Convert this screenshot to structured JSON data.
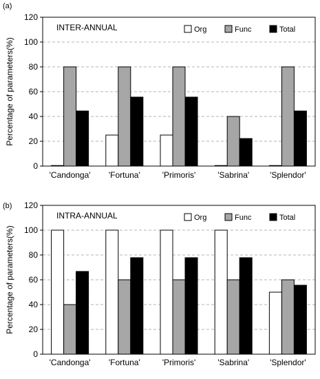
{
  "chart_data": [
    {
      "panel_label": "(a)",
      "type": "bar",
      "title": "INTER-ANNUAL",
      "ylabel": "Percentage of parameters(%)",
      "ylim": [
        0,
        120
      ],
      "yticks": [
        "0",
        "20",
        "40",
        "60",
        "80",
        "100",
        "120"
      ],
      "grid": "horizontal dashed",
      "legend_position": "top-right",
      "categories": [
        "'Candonga'",
        "'Fortuna'",
        "'Primoris'",
        "'Sabrina'",
        "'Splendor'"
      ],
      "series": [
        {
          "name": "Org",
          "color": "#ffffff",
          "values": [
            0,
            25,
            25,
            0,
            0
          ]
        },
        {
          "name": "Func",
          "color": "#a6a6a6",
          "values": [
            80,
            80,
            80,
            40,
            80
          ]
        },
        {
          "name": "Total",
          "color": "#000000",
          "values": [
            44.4,
            55.6,
            55.6,
            22.2,
            44.4
          ]
        }
      ]
    },
    {
      "panel_label": "(b)",
      "type": "bar",
      "title": "INTRA-ANNUAL",
      "ylabel": "Percentage of parameters(%)",
      "ylim": [
        0,
        120
      ],
      "yticks": [
        "0",
        "20",
        "40",
        "60",
        "80",
        "100",
        "120"
      ],
      "grid": "horizontal dashed",
      "legend_position": "top-right",
      "categories": [
        "'Candonga'",
        "'Fortuna'",
        "'Primoris'",
        "'Sabrina'",
        "'Splendor'"
      ],
      "series": [
        {
          "name": "Org",
          "color": "#ffffff",
          "values": [
            100,
            100,
            100,
            100,
            50
          ]
        },
        {
          "name": "Func",
          "color": "#a6a6a6",
          "values": [
            40,
            60,
            60,
            60,
            60
          ]
        },
        {
          "name": "Total",
          "color": "#000000",
          "values": [
            66.7,
            77.8,
            77.8,
            77.8,
            55.6
          ]
        }
      ]
    }
  ]
}
